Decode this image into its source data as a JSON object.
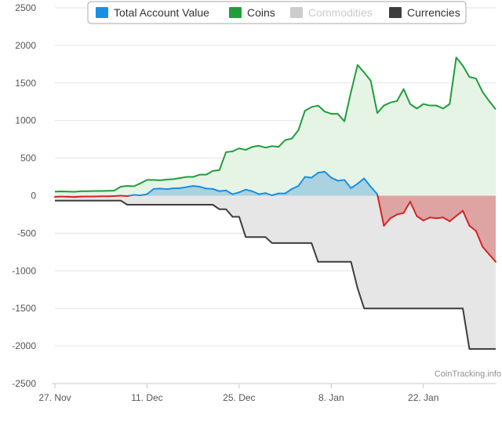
{
  "chart_data": {
    "type": "area",
    "title": "",
    "xlabel": "",
    "ylabel": "",
    "ylim": [
      -2500,
      2500
    ],
    "y_ticks": [
      2500,
      2000,
      1500,
      1000,
      500,
      0,
      -500,
      -1000,
      -1500,
      -2000,
      -2500
    ],
    "y_tick_labels": [
      "2500",
      "2000",
      "1500",
      "1000",
      "500",
      "0",
      "-500",
      "-1000",
      "-1500",
      "-2000",
      "-2500"
    ],
    "x_ticks": [
      0,
      14,
      28,
      42,
      56
    ],
    "x_tick_labels": [
      "27. Nov",
      "11. Dec",
      "25. Dec",
      "8. Jan",
      "22. Jan"
    ],
    "x_unit": "days since 27. Nov",
    "xlim": [
      0,
      67
    ],
    "grid": "horizontal",
    "legend_placement": "top",
    "credit": "CoinTracking.info",
    "legend": [
      {
        "name": "Total Account Value",
        "color": "#1a8fe6"
      },
      {
        "name": "Coins",
        "color": "#1f9e3a"
      },
      {
        "name": "Commodities",
        "color": "#cccccc",
        "hidden": true
      },
      {
        "name": "Currencies",
        "color": "#3d3d3d"
      }
    ],
    "colors": {
      "total_positive": "#1a8fe6",
      "total_negative": "#d62424",
      "coins_fill": "#e6f4e6",
      "total_positive_fill": "#a9d3e0",
      "total_negative_fill": "#dea3a3",
      "currencies_fill": "#e6e6e6"
    },
    "series": [
      {
        "name": "Total Account Value",
        "x": [
          0,
          1,
          2,
          3,
          4,
          5,
          6,
          7,
          8,
          9,
          10,
          11,
          12,
          13,
          14,
          15,
          16,
          17,
          18,
          19,
          20,
          21,
          22,
          23,
          24,
          25,
          26,
          27,
          28,
          29,
          30,
          31,
          32,
          33,
          34,
          35,
          36,
          37,
          38,
          39,
          40,
          41,
          42,
          43,
          44,
          45,
          46,
          47,
          48,
          49,
          50,
          51,
          52,
          53,
          54,
          55,
          56,
          57,
          58,
          59,
          60,
          61,
          62,
          63,
          64,
          65,
          66,
          67
        ],
        "values": [
          -15,
          -12,
          -14,
          -18,
          -12,
          -10,
          -10,
          -8,
          -8,
          -5,
          0,
          -5,
          10,
          5,
          20,
          90,
          95,
          88,
          98,
          100,
          115,
          130,
          120,
          95,
          90,
          60,
          70,
          20,
          45,
          80,
          60,
          20,
          35,
          5,
          30,
          30,
          90,
          130,
          250,
          240,
          305,
          320,
          240,
          200,
          210,
          100,
          160,
          230,
          120,
          20,
          -400,
          -300,
          -250,
          -230,
          -80,
          -270,
          -330,
          -290,
          -300,
          -290,
          -340,
          -270,
          -200,
          -400,
          -470,
          -680,
          -780,
          -880
        ]
      },
      {
        "name": "Coins",
        "x": [
          0,
          1,
          2,
          3,
          4,
          5,
          6,
          7,
          8,
          9,
          10,
          11,
          12,
          13,
          14,
          15,
          16,
          17,
          18,
          19,
          20,
          21,
          22,
          23,
          24,
          25,
          26,
          27,
          28,
          29,
          30,
          31,
          32,
          33,
          34,
          35,
          36,
          37,
          38,
          39,
          40,
          41,
          42,
          43,
          44,
          45,
          46,
          47,
          48,
          49,
          50,
          51,
          52,
          53,
          54,
          55,
          56,
          57,
          58,
          59,
          60,
          61,
          62,
          63,
          64,
          65,
          66,
          67
        ],
        "values": [
          55,
          58,
          55,
          52,
          60,
          60,
          62,
          62,
          65,
          68,
          120,
          130,
          125,
          165,
          210,
          210,
          205,
          215,
          220,
          235,
          250,
          250,
          280,
          280,
          330,
          340,
          580,
          590,
          630,
          610,
          650,
          665,
          640,
          660,
          650,
          740,
          760,
          870,
          1130,
          1180,
          1200,
          1120,
          1090,
          1090,
          990,
          1380,
          1740,
          1640,
          1530,
          1100,
          1200,
          1240,
          1260,
          1420,
          1220,
          1160,
          1220,
          1200,
          1200,
          1160,
          1220,
          1840,
          1730,
          1580,
          1560,
          1380,
          1260,
          1150
        ]
      },
      {
        "name": "Currencies",
        "x": [
          0,
          1,
          2,
          3,
          4,
          5,
          6,
          7,
          8,
          9,
          10,
          11,
          12,
          13,
          14,
          15,
          16,
          17,
          18,
          19,
          20,
          21,
          22,
          23,
          24,
          25,
          26,
          27,
          28,
          29,
          30,
          31,
          32,
          33,
          34,
          35,
          36,
          37,
          38,
          39,
          40,
          41,
          42,
          43,
          44,
          45,
          46,
          47,
          48,
          49,
          50,
          51,
          52,
          53,
          54,
          55,
          56,
          57,
          58,
          59,
          60,
          61,
          62,
          63,
          64,
          65,
          66,
          67
        ],
        "values": [
          -65,
          -65,
          -65,
          -65,
          -65,
          -65,
          -65,
          -65,
          -65,
          -65,
          -65,
          -120,
          -120,
          -120,
          -120,
          -120,
          -120,
          -120,
          -120,
          -120,
          -120,
          -120,
          -120,
          -120,
          -120,
          -180,
          -180,
          -280,
          -280,
          -550,
          -550,
          -550,
          -550,
          -630,
          -630,
          -630,
          -630,
          -630,
          -630,
          -630,
          -880,
          -880,
          -880,
          -880,
          -880,
          -880,
          -1230,
          -1500,
          -1500,
          -1500,
          -1500,
          -1500,
          -1500,
          -1500,
          -1500,
          -1500,
          -1500,
          -1500,
          -1500,
          -1500,
          -1500,
          -1500,
          -1500,
          -2040,
          -2040,
          -2040,
          -2040,
          -2040
        ]
      }
    ]
  }
}
